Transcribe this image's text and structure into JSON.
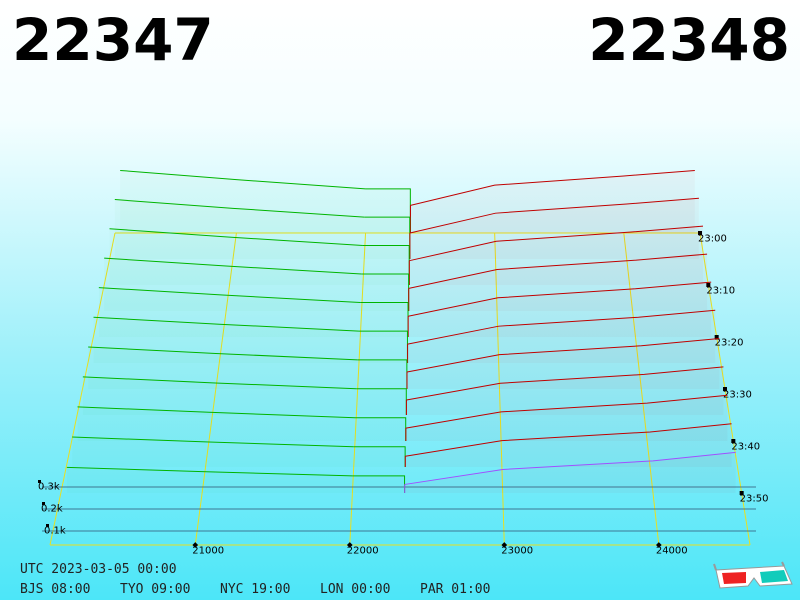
{
  "chart_data": {
    "type": "depth",
    "best_bid": 22347,
    "best_ask": 22348,
    "bid_color": "#00b400",
    "ask_color": "#c00000",
    "latest_color": "#a050ff",
    "xlim": [
      20060,
      24590
    ],
    "xticks": [
      21000,
      22000,
      23000,
      24000
    ],
    "depth_ticks": [
      {
        "value": 100,
        "label": "0.1k"
      },
      {
        "value": 200,
        "label": "0.2k"
      },
      {
        "value": 300,
        "label": "0.3k"
      }
    ],
    "bid_prices": [
      20100,
      21000,
      22000
    ],
    "ask_prices": [
      23000,
      24000,
      24550
    ],
    "snapshots": [
      {
        "time": "23:00",
        "bids": [
          340,
          290,
          240
        ],
        "asks": [
          150,
          260,
          310,
          340
        ]
      },
      {
        "time": null,
        "bids": [
          318,
          271,
          224
        ],
        "asks": [
          139,
          245,
          294,
          325
        ]
      },
      {
        "time": "23:10",
        "bids": [
          296,
          252,
          208
        ],
        "asks": [
          128,
          230,
          278,
          310
        ]
      },
      {
        "time": null,
        "bids": [
          274,
          233,
          192
        ],
        "asks": [
          117,
          215,
          262,
          295
        ]
      },
      {
        "time": "23:20",
        "bids": [
          252,
          214,
          176
        ],
        "asks": [
          106,
          200,
          246,
          280
        ]
      },
      {
        "time": null,
        "bids": [
          230,
          195,
          160
        ],
        "asks": [
          95,
          185,
          230,
          265
        ]
      },
      {
        "time": "23:30",
        "bids": [
          208,
          176,
          144
        ],
        "asks": [
          84,
          170,
          214,
          250
        ]
      },
      {
        "time": null,
        "bids": [
          186,
          157,
          128
        ],
        "asks": [
          73,
          155,
          198,
          235
        ]
      },
      {
        "time": "23:40",
        "bids": [
          164,
          138,
          112
        ],
        "asks": [
          62,
          140,
          182,
          220
        ]
      },
      {
        "time": null,
        "bids": [
          142,
          119,
          96
        ],
        "asks": [
          51,
          125,
          166,
          205
        ]
      },
      {
        "time": "23:50",
        "bids": [
          120,
          100,
          80
        ],
        "asks": [
          40,
          110,
          150,
          190
        ]
      }
    ],
    "footer": {
      "utc": "UTC 2023-03-05 00:00",
      "zones": [
        "BJS 08:00",
        "TYO 09:00",
        "NYC 19:00",
        "LON 00:00",
        "PAR 01:00"
      ]
    }
  }
}
